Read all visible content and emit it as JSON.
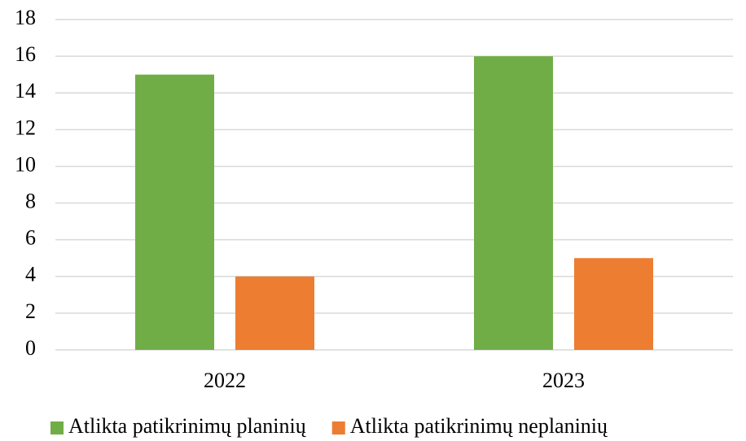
{
  "chart_data": {
    "type": "bar",
    "categories": [
      "2022",
      "2023"
    ],
    "series": [
      {
        "name": "Atlikta patikrinimų planinių",
        "color": "#70ad47",
        "values": [
          15,
          16
        ]
      },
      {
        "name": "Atlikta patikrinimų neplaninių",
        "color": "#ed7d31",
        "values": [
          4,
          5
        ]
      }
    ],
    "ylim": [
      0,
      18
    ],
    "yticks": [
      0,
      2,
      4,
      6,
      8,
      10,
      12,
      14,
      16,
      18
    ],
    "grid": true,
    "legend": "bottom"
  }
}
